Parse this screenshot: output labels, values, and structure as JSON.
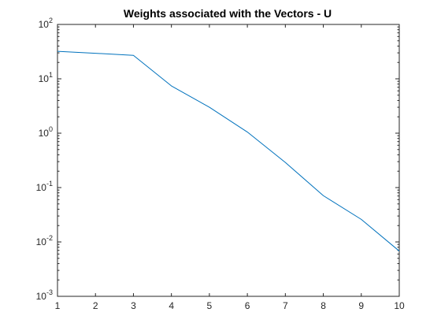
{
  "chart_data": {
    "type": "line",
    "title": "Weights associated with the Vectors - U",
    "xlabel": "",
    "ylabel": "",
    "xlim": [
      1,
      10
    ],
    "ylim": [
      0.001,
      100
    ],
    "yscale": "log",
    "grid": false,
    "x_ticks": [
      1,
      2,
      3,
      4,
      5,
      6,
      7,
      8,
      9,
      10
    ],
    "y_ticks": [
      {
        "base": "10",
        "exp": "-3",
        "value": 0.001
      },
      {
        "base": "10",
        "exp": "-2",
        "value": 0.01
      },
      {
        "base": "10",
        "exp": "-1",
        "value": 0.1
      },
      {
        "base": "10",
        "exp": "0",
        "value": 1
      },
      {
        "base": "10",
        "exp": "1",
        "value": 10
      },
      {
        "base": "10",
        "exp": "2",
        "value": 100
      }
    ],
    "series": [
      {
        "color": "#0072bd",
        "x": [
          1,
          2,
          3,
          4,
          5,
          6,
          7,
          8,
          9,
          10
        ],
        "y": [
          32,
          29.5,
          27,
          7.4,
          3,
          1.05,
          0.29,
          0.071,
          0.026,
          0.0068
        ]
      }
    ]
  }
}
